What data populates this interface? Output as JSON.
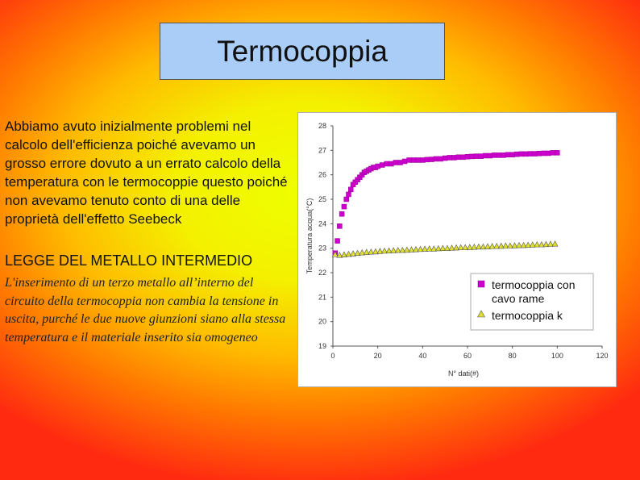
{
  "slide": {
    "title": "Termocoppia",
    "paragraph": "Abbiamo avuto inizialmente problemi nel calcolo dell'efficienza poiché avevamo un grosso errore dovuto a un errato calcolo della temperatura con le termocoppie questo poiché non avevamo tenuto conto di una delle proprietà dell'effetto Seebeck",
    "law_heading": "LEGGE DEL METALLO INTERMEDIO",
    "law_text": "L'inserimento di un terzo metallo all’interno del circuito della termocoppia non cambia la tensione in uscita, purché le due nuove giunzioni siano alla stessa temperatura e il materiale inserito sia omogeneo"
  },
  "chart_data": {
    "type": "scatter",
    "xlabel": "N° dati(#)",
    "ylabel": "Temperatura acqua(°C)",
    "xlim": [
      0,
      120
    ],
    "ylim": [
      19,
      28
    ],
    "xticks": [
      "0",
      "20",
      "40",
      "60",
      "80",
      "100",
      "120"
    ],
    "yticks": [
      "19",
      "20",
      "21",
      "22",
      "23",
      "24",
      "25",
      "26",
      "27",
      "28"
    ],
    "legend_position": "bottom-right",
    "series": [
      {
        "name": "termocoppia con cavo rame",
        "marker": "square",
        "color": "#cc00cc",
        "x": [
          1,
          2,
          3,
          4,
          5,
          6,
          7,
          8,
          9,
          10,
          11,
          12,
          13,
          14,
          15,
          16,
          17,
          18,
          19,
          20,
          22,
          24,
          26,
          28,
          30,
          32,
          34,
          36,
          38,
          40,
          42,
          44,
          46,
          48,
          50,
          52,
          54,
          56,
          58,
          60,
          62,
          64,
          66,
          68,
          70,
          72,
          74,
          76,
          78,
          80,
          82,
          84,
          86,
          88,
          90,
          92,
          94,
          96,
          98,
          100
        ],
        "y": [
          22.8,
          23.3,
          23.9,
          24.4,
          24.7,
          25.0,
          25.2,
          25.4,
          25.6,
          25.7,
          25.8,
          25.9,
          26.0,
          26.1,
          26.15,
          26.2,
          26.25,
          26.3,
          26.3,
          26.35,
          26.4,
          26.45,
          26.45,
          26.5,
          26.5,
          26.55,
          26.6,
          26.6,
          26.6,
          26.6,
          26.62,
          26.63,
          26.65,
          26.65,
          26.68,
          26.7,
          26.7,
          26.72,
          26.72,
          26.74,
          26.75,
          26.76,
          26.76,
          26.78,
          26.78,
          26.8,
          26.8,
          26.8,
          26.82,
          26.82,
          26.84,
          26.85,
          26.85,
          26.86,
          26.86,
          26.87,
          26.88,
          26.88,
          26.9,
          26.9
        ]
      },
      {
        "name": "termocoppia k",
        "marker": "triangle",
        "color": "#e0e030",
        "x": [
          1,
          3,
          5,
          7,
          9,
          11,
          13,
          15,
          17,
          19,
          21,
          23,
          25,
          27,
          29,
          31,
          33,
          35,
          37,
          39,
          41,
          43,
          45,
          47,
          49,
          51,
          53,
          55,
          57,
          59,
          61,
          63,
          65,
          67,
          69,
          71,
          73,
          75,
          77,
          79,
          81,
          83,
          85,
          87,
          89,
          91,
          93,
          95,
          97,
          99
        ],
        "y": [
          22.75,
          22.72,
          22.74,
          22.76,
          22.78,
          22.8,
          22.82,
          22.84,
          22.85,
          22.86,
          22.88,
          22.89,
          22.9,
          22.91,
          22.92,
          22.92,
          22.93,
          22.94,
          22.95,
          22.96,
          22.97,
          22.98,
          22.98,
          22.99,
          23.0,
          23.0,
          23.01,
          23.02,
          23.03,
          23.03,
          23.04,
          23.05,
          23.06,
          23.06,
          23.07,
          23.08,
          23.08,
          23.09,
          23.1,
          23.1,
          23.11,
          23.12,
          23.12,
          23.13,
          23.14,
          23.15,
          23.15,
          23.16,
          23.17,
          23.18
        ]
      }
    ]
  }
}
